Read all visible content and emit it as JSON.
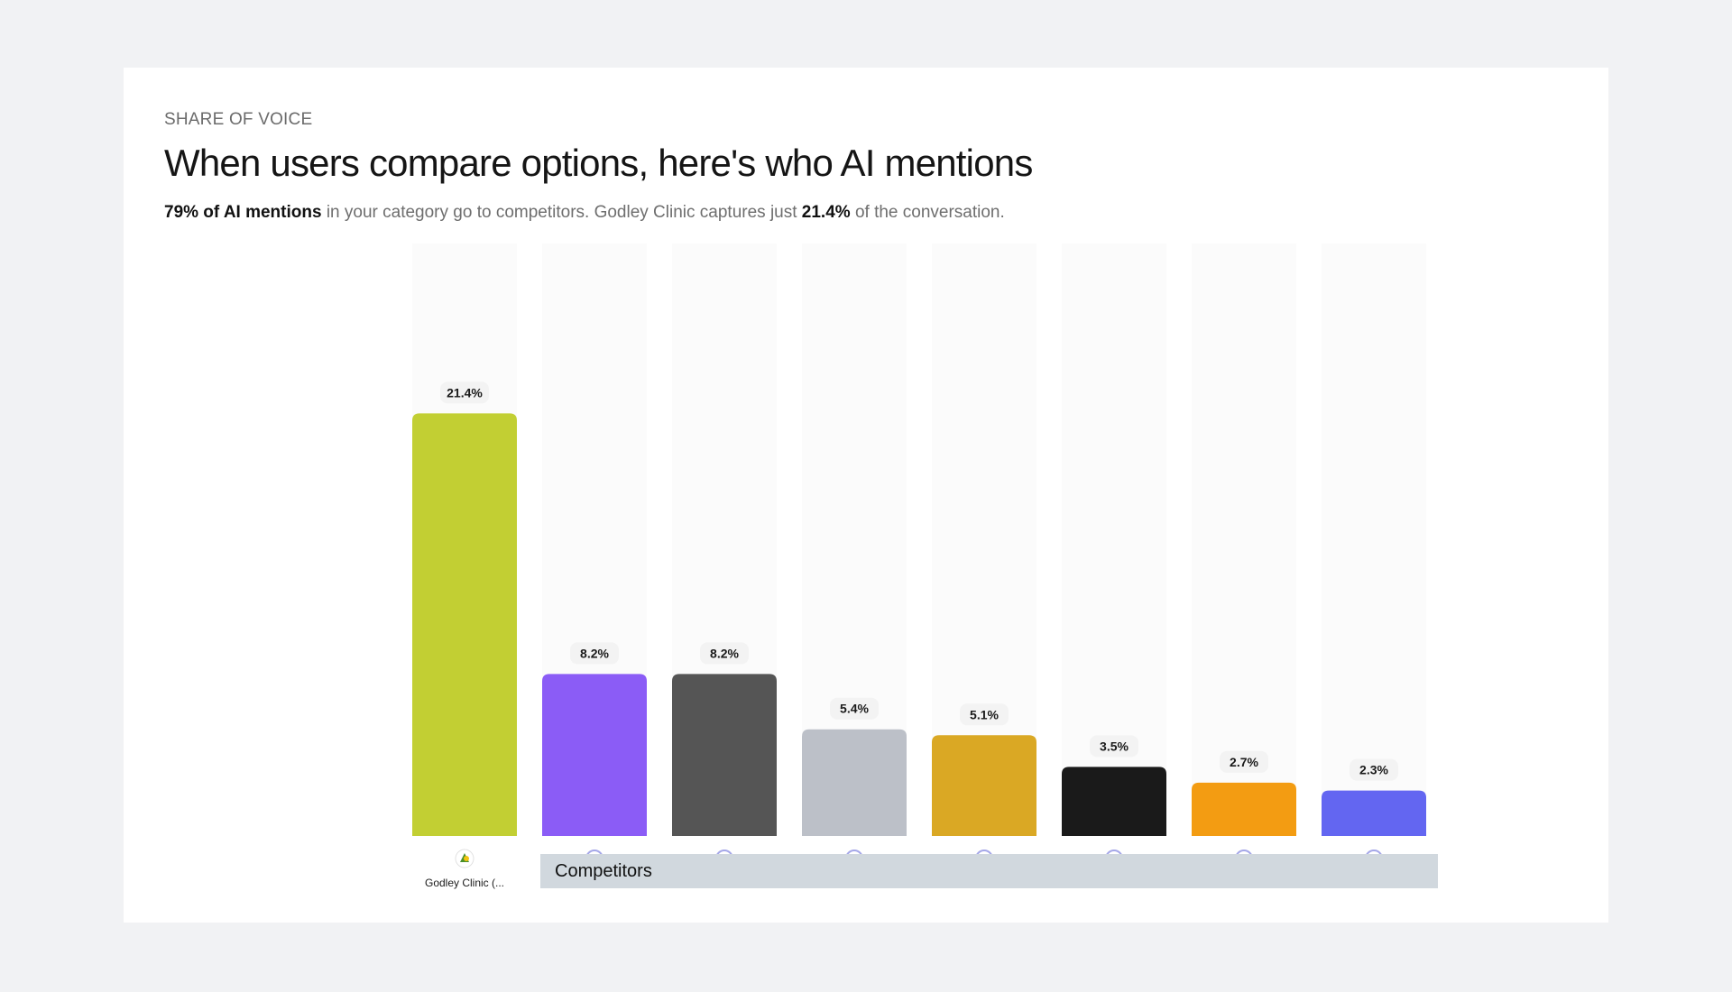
{
  "header": {
    "eyebrow": "SHARE OF VOICE",
    "title": "When users compare options, here's who AI mentions",
    "subtitle_strong_1": "79% of AI mentions",
    "subtitle_text_1": " in your category go to competitors. Godley Clinic captures just ",
    "subtitle_strong_2": "21.4%",
    "subtitle_text_2": " of the conversation."
  },
  "legend": {
    "label": "Competitors",
    "color": "#d1d8de"
  },
  "chart_data": {
    "type": "bar",
    "ylim": [
      0,
      30
    ],
    "grid": false,
    "value_suffix": "%",
    "categories": [
      "Godley Clinic (...",
      "",
      "",
      "",
      "",
      "",
      "",
      ""
    ],
    "values": [
      21.4,
      8.2,
      8.2,
      5.4,
      5.1,
      3.5,
      2.7,
      2.3
    ],
    "data_labels": [
      "21.4%",
      "8.2%",
      "8.2%",
      "5.4%",
      "5.1%",
      "3.5%",
      "2.7%",
      "2.3%"
    ],
    "colors": [
      "#c2cf33",
      "#8b5cf6",
      "#555555",
      "#bcc0c8",
      "#daa824",
      "#1a1a1a",
      "#f39c12",
      "#6366f1"
    ],
    "icon_names": [
      "clinic-logo-icon",
      "globe-icon",
      "person-icon",
      "star-icon",
      "document-icon",
      "letter-logo-icon",
      "globe-icon",
      "globe-icon"
    ]
  }
}
